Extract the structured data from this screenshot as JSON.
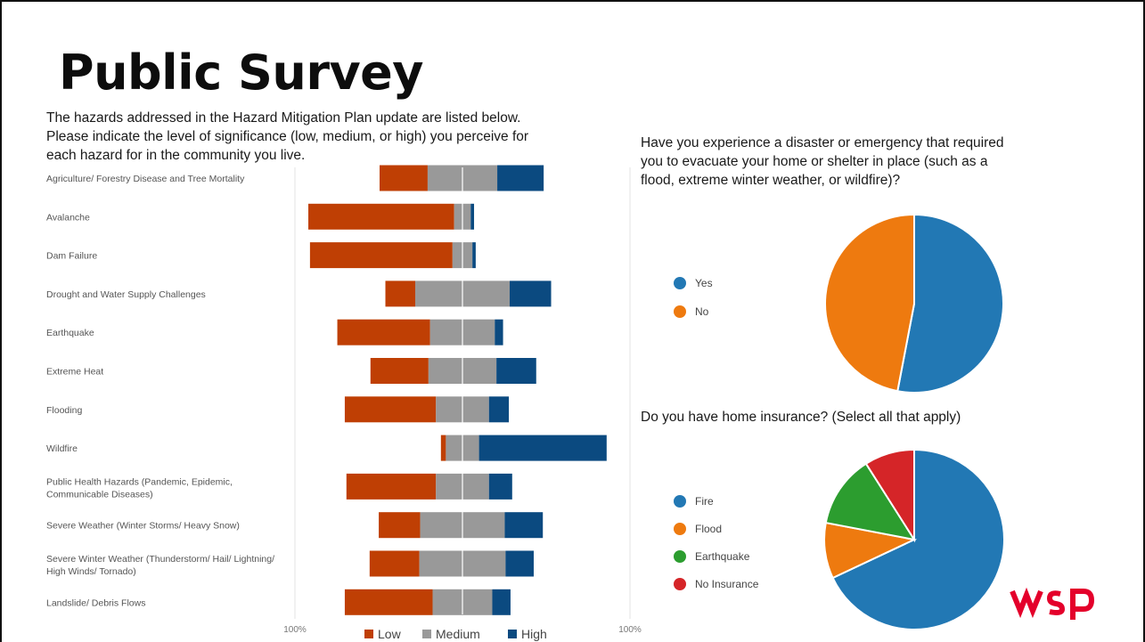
{
  "slide": {
    "title": "Public Survey",
    "intro_lines": [
      "The hazards addressed in the Hazard Mitigation Plan update are listed below.",
      "Please indicate the level of significance (low, medium, or high) you perceive for",
      "each hazard for in the community you live."
    ]
  },
  "questions": {
    "q1_lines": [
      "Have you experience a disaster or emergency that required",
      "you to evacuate your home or shelter in place (such as a",
      "flood, extreme winter weather, or wildfire)?"
    ],
    "q2": "Do you have home insurance? (Select all that apply)"
  },
  "logo": {
    "text": "wsp",
    "color": "#e4002b"
  },
  "chart_data": [
    {
      "type": "bar",
      "orientation": "horizontal",
      "stacked": "diverging",
      "center": "middle of Medium segment",
      "categories": [
        "Agriculture/ Forestry Disease and Tree Mortality",
        "Avalanche",
        "Dam Failure",
        "Drought and Water Supply Challenges",
        "Earthquake",
        "Extreme Heat",
        "Flooding",
        "Wildfire",
        "Public Health Hazards (Pandemic, Epidemic, Communicable Diseases)",
        "Severe Weather (Winter Storms/ Heavy Snow)",
        "Severe Winter Weather (Thunderstorm/ Hail/ Lightning/ High Winds/ Tornado)",
        "Landslide/ Debris Flows"
      ],
      "series": [
        {
          "name": "Low",
          "color": "#bf3f04",
          "values": [
            29,
            88,
            86,
            18,
            56,
            35,
            55,
            3,
            54,
            25,
            30,
            53
          ]
        },
        {
          "name": "Medium",
          "color": "#999999",
          "values": [
            42,
            10,
            12,
            57,
            39,
            41,
            32,
            20,
            32,
            51,
            52,
            36
          ]
        },
        {
          "name": "High",
          "color": "#0b4a80",
          "values": [
            28,
            2,
            2,
            25,
            5,
            24,
            12,
            77,
            14,
            23,
            17,
            11
          ]
        }
      ],
      "xlim_labels": [
        "100%",
        "100%"
      ],
      "grid": false,
      "legend": "bottom"
    },
    {
      "type": "pie",
      "labels": [
        "Yes",
        "No"
      ],
      "values": [
        53,
        47
      ],
      "colors": [
        "#2278b4",
        "#ee7a0f"
      ],
      "legend": "left"
    },
    {
      "type": "pie",
      "labels": [
        "Fire",
        "Flood",
        "Earthquake",
        "No Insurance"
      ],
      "values": [
        68,
        10,
        13,
        9
      ],
      "colors": [
        "#2278b4",
        "#ee7a0f",
        "#2c9d2f",
        "#d52528"
      ],
      "legend": "left"
    }
  ]
}
